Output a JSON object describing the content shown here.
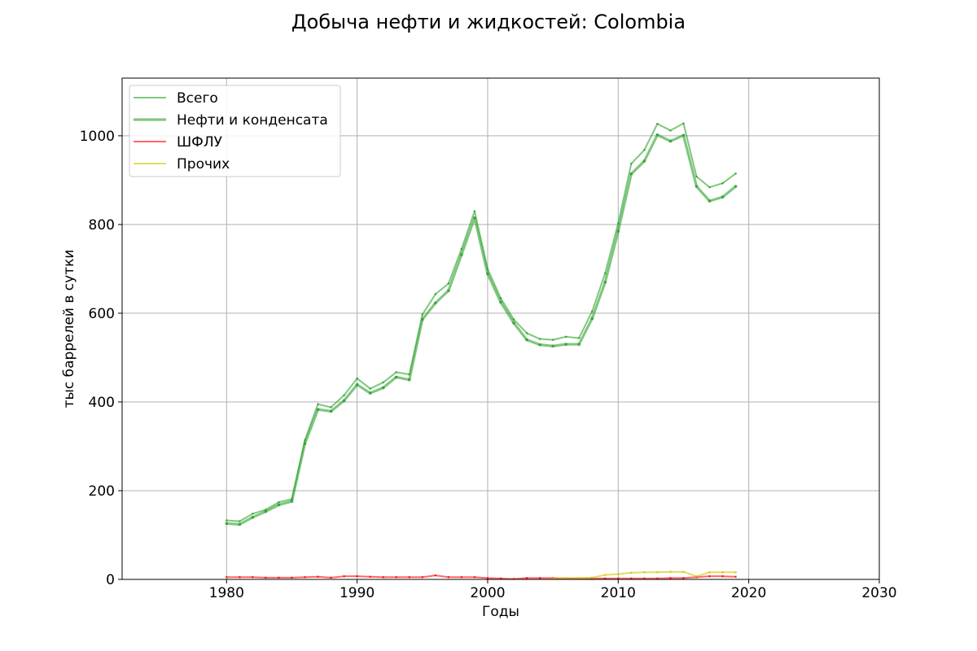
{
  "chart_data": {
    "type": "line",
    "title": "Добыча нефти и жидкостей: Colombia",
    "xlabel": "Годы",
    "ylabel": "тыс баррелей в сутки",
    "xlim": [
      1972,
      2030
    ],
    "ylim": [
      0,
      1130
    ],
    "xticks": [
      1980,
      1990,
      2000,
      2010,
      2020,
      2030
    ],
    "yticks": [
      0,
      200,
      400,
      600,
      800,
      1000
    ],
    "grid": true,
    "legend_position": "top-left",
    "x": [
      1980,
      1981,
      1982,
      1983,
      1984,
      1985,
      1986,
      1987,
      1988,
      1989,
      1990,
      1991,
      1992,
      1993,
      1994,
      1995,
      1996,
      1997,
      1998,
      1999,
      2000,
      2001,
      2002,
      2003,
      2004,
      2005,
      2006,
      2007,
      2008,
      2009,
      2010,
      2011,
      2012,
      2013,
      2014,
      2015,
      2016,
      2017,
      2018,
      2019
    ],
    "series": [
      {
        "name": "Всего",
        "color": "#2ca02c",
        "values": [
          133,
          131,
          148,
          157,
          174,
          181,
          314,
          395,
          388,
          415,
          453,
          430,
          444,
          467,
          462,
          597,
          643,
          667,
          745,
          830,
          700,
          634,
          586,
          555,
          542,
          540,
          547,
          544,
          604,
          690,
          803,
          937,
          968,
          1027,
          1012,
          1028,
          908,
          884,
          893,
          915
        ]
      },
      {
        "name": "Нефти и конденсата",
        "color": "#2ca02c",
        "values": [
          126,
          124,
          140,
          153,
          168,
          176,
          306,
          383,
          379,
          403,
          439,
          420,
          432,
          456,
          450,
          586,
          623,
          651,
          732,
          815,
          689,
          625,
          578,
          540,
          529,
          526,
          530,
          530,
          588,
          670,
          785,
          914,
          943,
          1002,
          988,
          1001,
          886,
          853,
          862,
          886
        ]
      },
      {
        "name": "ШФЛУ",
        "color": "#ff0000",
        "values": [
          5,
          5,
          5,
          4,
          4,
          4,
          5,
          6,
          4,
          7,
          7,
          6,
          5,
          5,
          5,
          5,
          9,
          5,
          5,
          5,
          3,
          2,
          1,
          3,
          3,
          3,
          2,
          2,
          2,
          2,
          2,
          2,
          2,
          2,
          3,
          3,
          5,
          7,
          7,
          6
        ]
      },
      {
        "name": "Прочих",
        "color": "#d4c200",
        "x": [
          2005,
          2006,
          2007,
          2008,
          2009,
          2010,
          2011,
          2012,
          2013,
          2014,
          2015,
          2016,
          2017,
          2018,
          2019
        ],
        "values": [
          2,
          3,
          3,
          4,
          10,
          12,
          15,
          16,
          16,
          17,
          17,
          7,
          16,
          16,
          16
        ]
      }
    ]
  }
}
